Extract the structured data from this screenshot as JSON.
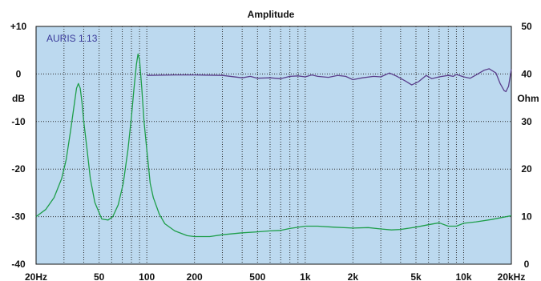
{
  "chart_data": {
    "type": "line",
    "title": "Amplitude",
    "watermark": "AURIS 1.13",
    "x_scale": "log",
    "xlim": [
      20,
      20000
    ],
    "x_ticks": [
      {
        "value": 20,
        "label": "20Hz"
      },
      {
        "value": 50,
        "label": "50"
      },
      {
        "value": 100,
        "label": "100"
      },
      {
        "value": 200,
        "label": "200"
      },
      {
        "value": 500,
        "label": "500"
      },
      {
        "value": 1000,
        "label": "1k"
      },
      {
        "value": 2000,
        "label": "2k"
      },
      {
        "value": 5000,
        "label": "5k"
      },
      {
        "value": 10000,
        "label": "10k"
      },
      {
        "value": 20000,
        "label": "20kHz"
      }
    ],
    "y_left": {
      "label": "dB",
      "lim": [
        -40,
        10
      ],
      "ticks": [
        {
          "value": 10,
          "label": "+10"
        },
        {
          "value": 0,
          "label": "0"
        },
        {
          "value": -10,
          "label": "-10"
        },
        {
          "value": -20,
          "label": "-20"
        },
        {
          "value": -30,
          "label": "-30"
        },
        {
          "value": -40,
          "label": "-40"
        }
      ]
    },
    "y_right": {
      "label": "Ohm",
      "lim": [
        0,
        50
      ],
      "ticks": [
        {
          "value": 50,
          "label": "50"
        },
        {
          "value": 40,
          "label": "40"
        },
        {
          "value": 30,
          "label": "30"
        },
        {
          "value": 20,
          "label": "20"
        },
        {
          "value": 10,
          "label": "10"
        },
        {
          "value": 0,
          "label": "0"
        }
      ]
    },
    "grid": true,
    "colors": {
      "plot_bg": "#bcd9ef",
      "grid": "#2a2a2a",
      "impedance": "#1e9e4a",
      "amplitude": "#5a3e8c"
    },
    "series": [
      {
        "key": "impedance",
        "axis": "right",
        "points": [
          [
            20,
            10
          ],
          [
            23,
            11.5
          ],
          [
            26,
            14
          ],
          [
            29,
            18
          ],
          [
            31,
            22
          ],
          [
            33,
            28
          ],
          [
            35,
            34
          ],
          [
            36,
            37
          ],
          [
            37,
            38
          ],
          [
            38,
            37
          ],
          [
            39,
            34
          ],
          [
            40,
            30
          ],
          [
            42,
            24
          ],
          [
            44,
            18
          ],
          [
            47,
            13
          ],
          [
            52,
            9.5
          ],
          [
            57,
            9.3
          ],
          [
            61,
            10
          ],
          [
            66,
            12.5
          ],
          [
            71,
            17
          ],
          [
            76,
            24
          ],
          [
            80,
            31
          ],
          [
            83,
            37
          ],
          [
            86,
            42
          ],
          [
            88,
            44.2
          ],
          [
            90,
            43
          ],
          [
            93,
            37
          ],
          [
            96,
            30
          ],
          [
            100,
            24
          ],
          [
            105,
            17
          ],
          [
            110,
            14
          ],
          [
            120,
            10.5
          ],
          [
            130,
            8.5
          ],
          [
            150,
            7
          ],
          [
            180,
            6
          ],
          [
            200,
            5.8
          ],
          [
            250,
            5.8
          ],
          [
            300,
            6.2
          ],
          [
            400,
            6.6
          ],
          [
            500,
            6.8
          ],
          [
            600,
            7
          ],
          [
            700,
            7.1
          ],
          [
            800,
            7.5
          ],
          [
            1000,
            8
          ],
          [
            1200,
            8
          ],
          [
            1500,
            7.8
          ],
          [
            2000,
            7.6
          ],
          [
            2500,
            7.7
          ],
          [
            3000,
            7.4
          ],
          [
            3500,
            7.2
          ],
          [
            4000,
            7.3
          ],
          [
            5000,
            7.8
          ],
          [
            6000,
            8.3
          ],
          [
            7000,
            8.7
          ],
          [
            8000,
            8
          ],
          [
            9000,
            8
          ],
          [
            10000,
            8.6
          ],
          [
            12000,
            8.9
          ],
          [
            15000,
            9.4
          ],
          [
            20000,
            10.2
          ]
        ]
      },
      {
        "key": "amplitude",
        "axis": "left",
        "points": [
          [
            100,
            -0.3
          ],
          [
            150,
            -0.2
          ],
          [
            200,
            -0.2
          ],
          [
            300,
            -0.3
          ],
          [
            400,
            -0.8
          ],
          [
            450,
            -0.5
          ],
          [
            500,
            -0.9
          ],
          [
            600,
            -0.8
          ],
          [
            700,
            -1.0
          ],
          [
            800,
            -0.5
          ],
          [
            900,
            -0.4
          ],
          [
            1000,
            -0.6
          ],
          [
            1100,
            -0.2
          ],
          [
            1200,
            -0.5
          ],
          [
            1400,
            -0.7
          ],
          [
            1600,
            -0.3
          ],
          [
            1800,
            -0.5
          ],
          [
            2000,
            -1.2
          ],
          [
            2300,
            -0.8
          ],
          [
            2700,
            -0.5
          ],
          [
            3000,
            -0.6
          ],
          [
            3400,
            0.2
          ],
          [
            3800,
            -0.5
          ],
          [
            4300,
            -1.5
          ],
          [
            4700,
            -2.3
          ],
          [
            5200,
            -1.6
          ],
          [
            5800,
            -0.3
          ],
          [
            6300,
            -1.0
          ],
          [
            7000,
            -0.6
          ],
          [
            8000,
            -0.3
          ],
          [
            8600,
            -0.5
          ],
          [
            9000,
            -0.1
          ],
          [
            10000,
            -0.6
          ],
          [
            11000,
            -0.9
          ],
          [
            12000,
            -0.2
          ],
          [
            13500,
            0.8
          ],
          [
            14500,
            1.1
          ],
          [
            16000,
            0.2
          ],
          [
            17000,
            -2.0
          ],
          [
            18000,
            -3.5
          ],
          [
            18500,
            -3.7
          ],
          [
            19200,
            -2.6
          ],
          [
            20000,
            1.0
          ]
        ]
      }
    ]
  }
}
